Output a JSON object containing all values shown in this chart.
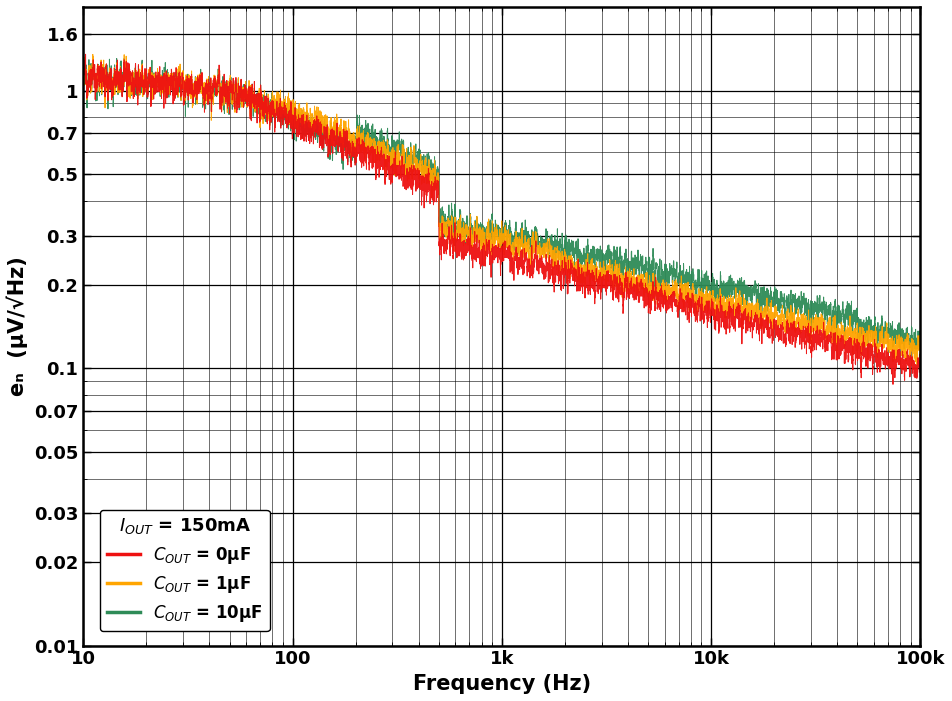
{
  "xlabel": "Frequency (Hz)",
  "ylabel": "eₙ  (µV/√Hz)",
  "xlim": [
    10,
    100000
  ],
  "ylim": [
    0.01,
    2.0
  ],
  "colors": {
    "red": "#EE1111",
    "orange": "#FFA500",
    "green": "#2E8B57"
  },
  "yticks": [
    0.01,
    0.02,
    0.03,
    0.05,
    0.07,
    0.1,
    0.2,
    0.3,
    0.5,
    0.7,
    1.0,
    1.6
  ],
  "ytick_labels": [
    "0.01",
    "0.02",
    "0.03",
    "0.05",
    "0.07",
    "0.1",
    "0.2",
    "0.3",
    "0.5",
    "0.7",
    "1",
    "1.6"
  ],
  "seed": 12345
}
